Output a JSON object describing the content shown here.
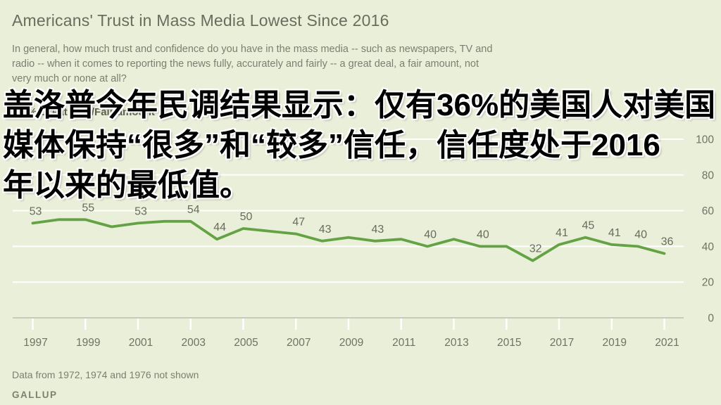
{
  "page": {
    "title": "Americans' Trust in Mass Media Lowest Since 2016",
    "subtitle_lines": [
      "In general, how much trust and confidence do you have in the mass media -- such as newspapers, TV and",
      "radio -- when it comes to reporting the news fully, accurately and fairly -- a great deal, a fair amount, not",
      "very much or none at all?"
    ],
    "legend": "% Great deal/Fair amount",
    "footnote": "Data from 1972, 1974 and 1976 not shown",
    "source": "GALLUP"
  },
  "overlay": {
    "lines": [
      "盖洛普今年民调结果显示：仅有36%的美国人对美国",
      "媒体保持“很多”和“较多”信任，信任度处于2016",
      "年以来的最低值。"
    ]
  },
  "colors": {
    "background": "#e9efd9",
    "line": "#64a344",
    "gridline": "#ffffff",
    "axis": "#c7cabc",
    "tick_text": "#6f7365",
    "data_label_text": "#686c5e"
  },
  "chart_data": {
    "type": "line",
    "title": "Americans' Trust in Mass Media Lowest Since 2016",
    "xlabel": "",
    "ylabel": "% Great deal/Fair amount",
    "legend_position": "top-left",
    "grid": true,
    "xlim": [
      1996,
      2022
    ],
    "ylim": [
      0,
      100
    ],
    "x_ticks": [
      1997,
      1999,
      2001,
      2003,
      2005,
      2007,
      2009,
      2011,
      2013,
      2015,
      2017,
      2019,
      2021
    ],
    "y_ticks": [
      0,
      20,
      40,
      60,
      80,
      100
    ],
    "series": [
      {
        "name": "% Great deal/Fair amount",
        "color": "#64a344",
        "points": [
          {
            "year": 1997,
            "value": 53,
            "labeled": true
          },
          {
            "year": 1998,
            "value": 55,
            "labeled": false
          },
          {
            "year": 1999,
            "value": 55,
            "labeled": true
          },
          {
            "year": 2000,
            "value": 51,
            "labeled": false
          },
          {
            "year": 2001,
            "value": 53,
            "labeled": true
          },
          {
            "year": 2002,
            "value": 54,
            "labeled": false
          },
          {
            "year": 2003,
            "value": 54,
            "labeled": true
          },
          {
            "year": 2004,
            "value": 44,
            "labeled": true
          },
          {
            "year": 2005,
            "value": 50,
            "labeled": true
          },
          {
            "year": 2007,
            "value": 47,
            "labeled": true
          },
          {
            "year": 2008,
            "value": 43,
            "labeled": true
          },
          {
            "year": 2009,
            "value": 45,
            "labeled": false
          },
          {
            "year": 2010,
            "value": 43,
            "labeled": true
          },
          {
            "year": 2011,
            "value": 44,
            "labeled": false
          },
          {
            "year": 2012,
            "value": 40,
            "labeled": true
          },
          {
            "year": 2013,
            "value": 44,
            "labeled": false
          },
          {
            "year": 2014,
            "value": 40,
            "labeled": true
          },
          {
            "year": 2015,
            "value": 40,
            "labeled": false
          },
          {
            "year": 2016,
            "value": 32,
            "labeled": true
          },
          {
            "year": 2017,
            "value": 41,
            "labeled": true
          },
          {
            "year": 2018,
            "value": 45,
            "labeled": true
          },
          {
            "year": 2019,
            "value": 41,
            "labeled": true
          },
          {
            "year": 2020,
            "value": 40,
            "labeled": true
          },
          {
            "year": 2021,
            "value": 36,
            "labeled": true
          }
        ]
      }
    ]
  }
}
